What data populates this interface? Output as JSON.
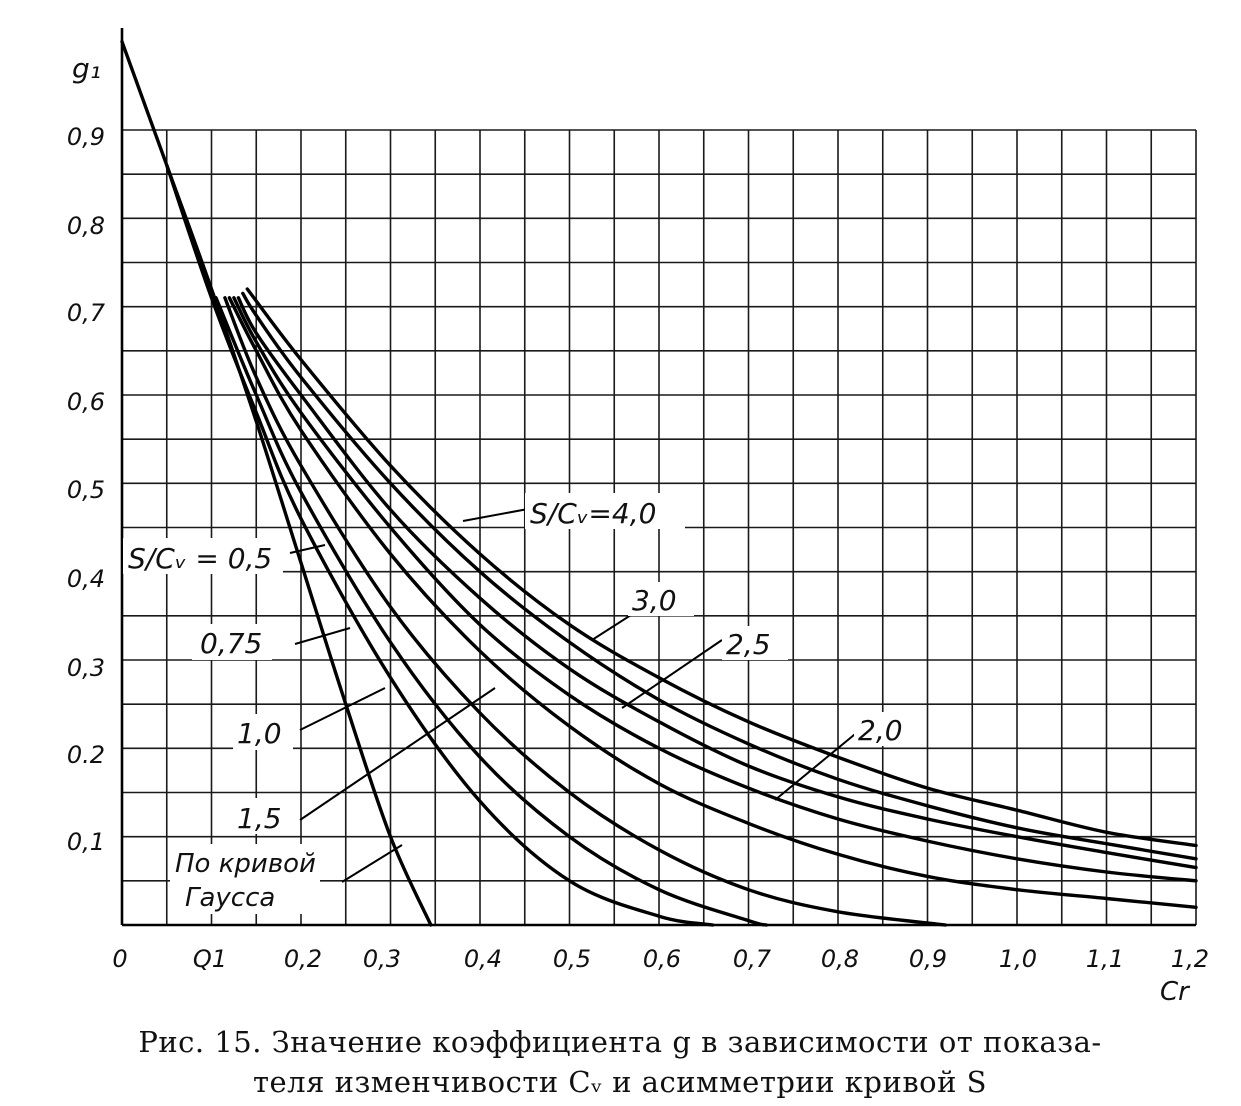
{
  "chart_data": {
    "type": "line",
    "ylabel": "g₁",
    "xlabel": "Cr",
    "xlim": [
      0,
      1.2
    ],
    "ylim": [
      0,
      1.0
    ],
    "grid": true,
    "x_ticks": [
      "0",
      "Q1",
      "0,2",
      "0,3",
      "0,4",
      "0,5",
      "0,6",
      "0,7",
      "0,8",
      "0,9",
      "1,0",
      "1,1",
      "1,2"
    ],
    "y_ticks": [
      "0,1",
      "0.2",
      "0,3",
      "0,4",
      "0,5",
      "0,6",
      "0,7",
      "0,8",
      "0,9"
    ],
    "series": [
      {
        "name": "По кривой Гаусса",
        "x": [
          0,
          0.05,
          0.1,
          0.15,
          0.2,
          0.25,
          0.3,
          0.345
        ],
        "y": [
          1.0,
          0.86,
          0.72,
          0.57,
          0.41,
          0.25,
          0.1,
          0.0
        ]
      },
      {
        "name": "0,5",
        "x": [
          0.05,
          0.1,
          0.15,
          0.2,
          0.3,
          0.4,
          0.5,
          0.6,
          0.66
        ],
        "y": [
          0.86,
          0.71,
          0.58,
          0.46,
          0.28,
          0.14,
          0.05,
          0.01,
          0.0
        ]
      },
      {
        "name": "0,75",
        "x": [
          0.105,
          0.15,
          0.2,
          0.3,
          0.4,
          0.5,
          0.6,
          0.7,
          0.72
        ],
        "y": [
          0.71,
          0.6,
          0.49,
          0.32,
          0.19,
          0.1,
          0.04,
          0.005,
          0.0
        ]
      },
      {
        "name": "1,0",
        "x": [
          0.115,
          0.15,
          0.2,
          0.3,
          0.4,
          0.5,
          0.6,
          0.7,
          0.8,
          0.92
        ],
        "y": [
          0.71,
          0.62,
          0.52,
          0.36,
          0.24,
          0.15,
          0.085,
          0.04,
          0.015,
          0.0
        ]
      },
      {
        "name": "1,5",
        "x": [
          0.12,
          0.15,
          0.2,
          0.3,
          0.4,
          0.5,
          0.6,
          0.7,
          0.8,
          0.9,
          1.0,
          1.1,
          1.2
        ],
        "y": [
          0.71,
          0.65,
          0.56,
          0.42,
          0.31,
          0.225,
          0.16,
          0.115,
          0.08,
          0.055,
          0.04,
          0.03,
          0.02
        ]
      },
      {
        "name": "2,0",
        "x": [
          0.125,
          0.15,
          0.2,
          0.3,
          0.4,
          0.5,
          0.6,
          0.7,
          0.8,
          0.9,
          1.0,
          1.1,
          1.2
        ],
        "y": [
          0.71,
          0.66,
          0.58,
          0.45,
          0.34,
          0.26,
          0.2,
          0.155,
          0.12,
          0.095,
          0.075,
          0.06,
          0.05
        ]
      },
      {
        "name": "2,5",
        "x": [
          0.13,
          0.15,
          0.2,
          0.3,
          0.4,
          0.5,
          0.6,
          0.7,
          0.8,
          0.9,
          1.0,
          1.1,
          1.2
        ],
        "y": [
          0.71,
          0.67,
          0.6,
          0.47,
          0.37,
          0.29,
          0.23,
          0.18,
          0.145,
          0.12,
          0.1,
          0.082,
          0.065
        ]
      },
      {
        "name": "3,0",
        "x": [
          0.135,
          0.15,
          0.2,
          0.3,
          0.4,
          0.5,
          0.6,
          0.7,
          0.8,
          0.9,
          1.0,
          1.1,
          1.2
        ],
        "y": [
          0.715,
          0.69,
          0.62,
          0.5,
          0.4,
          0.32,
          0.255,
          0.205,
          0.165,
          0.135,
          0.11,
          0.092,
          0.075
        ]
      },
      {
        "name": "S/Cᵥ=4,0",
        "x": [
          0.14,
          0.2,
          0.3,
          0.4,
          0.5,
          0.6,
          0.7,
          0.8,
          0.9,
          1.0,
          1.1,
          1.2
        ],
        "y": [
          0.72,
          0.64,
          0.52,
          0.42,
          0.34,
          0.28,
          0.23,
          0.19,
          0.155,
          0.13,
          0.105,
          0.09
        ]
      }
    ],
    "annotations": [
      "S/Cᵥ=4,0",
      "S/Cᵥ = 0,5",
      "0,75",
      "3,0",
      "2,5",
      "1,0",
      "2,0",
      "1,5",
      "По кривой",
      "Гаусса"
    ]
  },
  "caption": {
    "line1": "Рис. 15. Значение коэффициента g в зависимости от показа-",
    "line2": "теля изменчивости Cᵥ и асимметрии кривой S"
  }
}
